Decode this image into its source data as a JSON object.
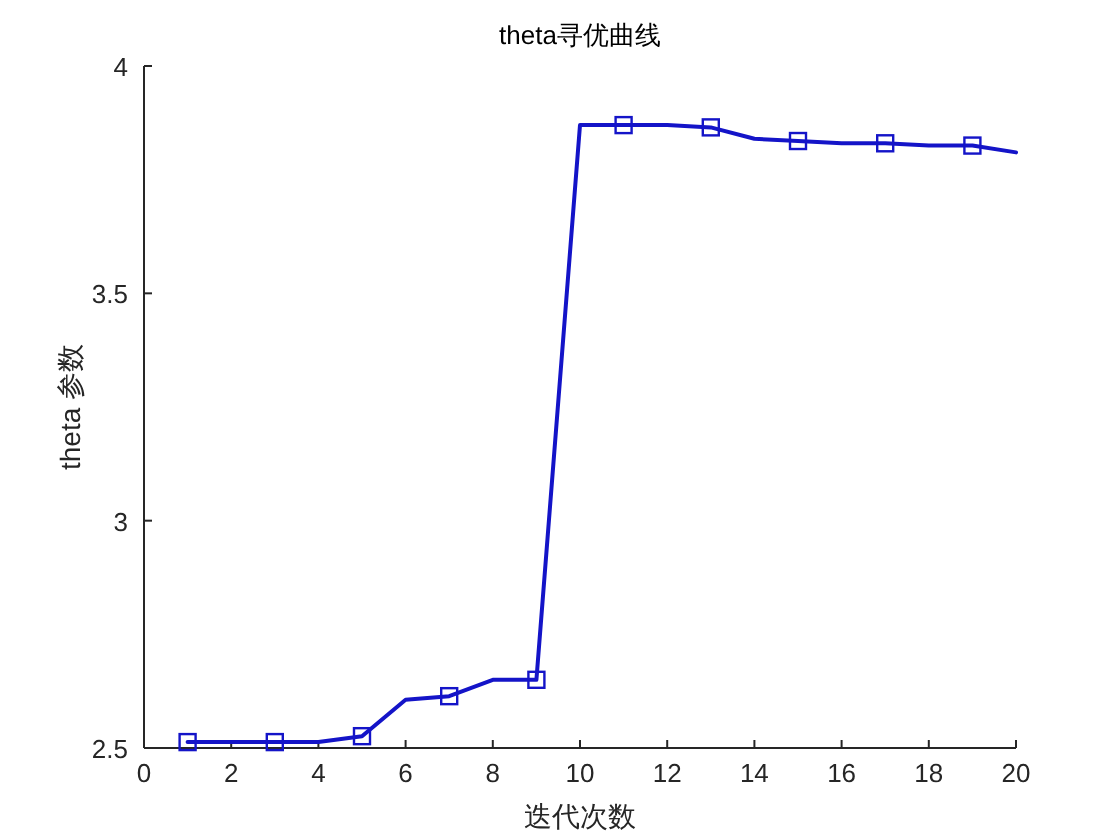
{
  "chart_data": {
    "type": "line",
    "title": "theta寻优曲线",
    "xlabel": "迭代次数",
    "ylabel": "theta 参数",
    "x": [
      1,
      2,
      3,
      4,
      5,
      6,
      7,
      8,
      9,
      10,
      11,
      12,
      13,
      14,
      15,
      16,
      17,
      18,
      19,
      20
    ],
    "series": [
      {
        "color": "#1414c8",
        "values": [
          2.513,
          2.513,
          2.513,
          2.513,
          2.526,
          2.606,
          2.614,
          2.65,
          2.65,
          3.87,
          3.87,
          3.87,
          3.865,
          3.84,
          3.835,
          3.83,
          3.83,
          3.825,
          3.825,
          3.81
        ]
      }
    ],
    "xlim": [
      0,
      20
    ],
    "xticks": [
      0,
      2,
      4,
      6,
      8,
      10,
      12,
      14,
      16,
      18,
      20
    ],
    "ylim": [
      2.5,
      4
    ],
    "yticks": [
      2.5,
      3,
      3.5,
      4
    ],
    "marker": "square",
    "line_style": "solid"
  }
}
